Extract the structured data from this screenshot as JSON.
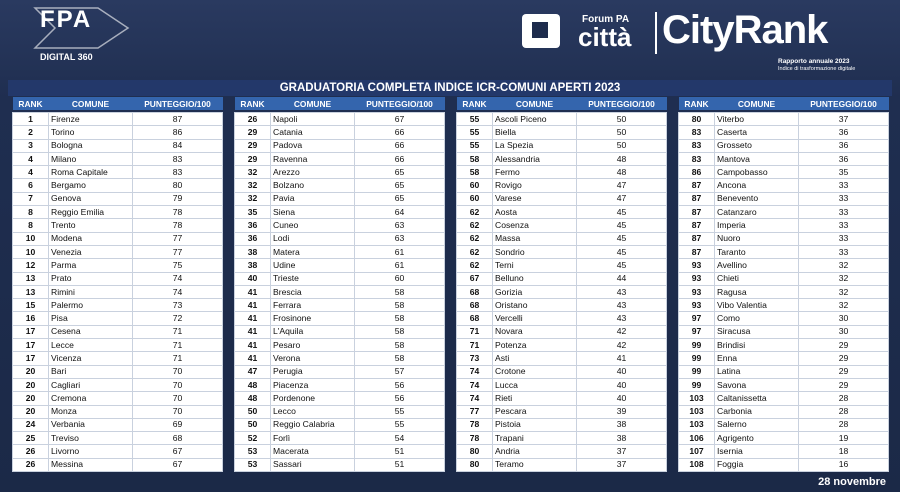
{
  "header": {
    "fpa": "FPA",
    "digital": "DIGITAL 360",
    "forum": "Forum PA",
    "citta": "città",
    "cityrank": "CityRank",
    "rapporto": "Rapporto annuale 2023",
    "indice": "Indice di trasformazione digitale"
  },
  "table": {
    "title": "GRADUATORIA COMPLETA INDICE ICR-COMUNI APERTI 2023",
    "columns": [
      "RANK",
      "COMUNE",
      "PUNTEGGIO/100"
    ],
    "groups": [
      [
        [
          1,
          "Firenze",
          87
        ],
        [
          2,
          "Torino",
          86
        ],
        [
          3,
          "Bologna",
          84
        ],
        [
          4,
          "Milano",
          83
        ],
        [
          4,
          "Roma Capitale",
          83
        ],
        [
          6,
          "Bergamo",
          80
        ],
        [
          7,
          "Genova",
          79
        ],
        [
          8,
          "Reggio Emilia",
          78
        ],
        [
          8,
          "Trento",
          78
        ],
        [
          10,
          "Modena",
          77
        ],
        [
          10,
          "Venezia",
          77
        ],
        [
          12,
          "Parma",
          75
        ],
        [
          13,
          "Prato",
          74
        ],
        [
          13,
          "Rimini",
          74
        ],
        [
          15,
          "Palermo",
          73
        ],
        [
          16,
          "Pisa",
          72
        ],
        [
          17,
          "Cesena",
          71
        ],
        [
          17,
          "Lecce",
          71
        ],
        [
          17,
          "Vicenza",
          71
        ],
        [
          20,
          "Bari",
          70
        ],
        [
          20,
          "Cagliari",
          70
        ],
        [
          20,
          "Cremona",
          70
        ],
        [
          20,
          "Monza",
          70
        ],
        [
          24,
          "Verbania",
          69
        ],
        [
          25,
          "Treviso",
          68
        ],
        [
          26,
          "Livorno",
          67
        ],
        [
          26,
          "Messina",
          67
        ]
      ],
      [
        [
          26,
          "Napoli",
          67
        ],
        [
          29,
          "Catania",
          66
        ],
        [
          29,
          "Padova",
          66
        ],
        [
          29,
          "Ravenna",
          66
        ],
        [
          32,
          "Arezzo",
          65
        ],
        [
          32,
          "Bolzano",
          65
        ],
        [
          32,
          "Pavia",
          65
        ],
        [
          35,
          "Siena",
          64
        ],
        [
          36,
          "Cuneo",
          63
        ],
        [
          36,
          "Lodi",
          63
        ],
        [
          38,
          "Matera",
          61
        ],
        [
          38,
          "Udine",
          61
        ],
        [
          40,
          "Trieste",
          60
        ],
        [
          41,
          "Brescia",
          58
        ],
        [
          41,
          "Ferrara",
          58
        ],
        [
          41,
          "Frosinone",
          58
        ],
        [
          41,
          "L'Aquila",
          58
        ],
        [
          41,
          "Pesaro",
          58
        ],
        [
          41,
          "Verona",
          58
        ],
        [
          47,
          "Perugia",
          57
        ],
        [
          48,
          "Piacenza",
          56
        ],
        [
          48,
          "Pordenone",
          56
        ],
        [
          50,
          "Lecco",
          55
        ],
        [
          50,
          "Reggio Calabria",
          55
        ],
        [
          52,
          "Forlì",
          54
        ],
        [
          53,
          "Macerata",
          51
        ],
        [
          53,
          "Sassari",
          51
        ]
      ],
      [
        [
          55,
          "Ascoli Piceno",
          50
        ],
        [
          55,
          "Biella",
          50
        ],
        [
          55,
          "La Spezia",
          50
        ],
        [
          58,
          "Alessandria",
          48
        ],
        [
          58,
          "Fermo",
          48
        ],
        [
          60,
          "Rovigo",
          47
        ],
        [
          60,
          "Varese",
          47
        ],
        [
          62,
          "Aosta",
          45
        ],
        [
          62,
          "Cosenza",
          45
        ],
        [
          62,
          "Massa",
          45
        ],
        [
          62,
          "Sondrio",
          45
        ],
        [
          62,
          "Terni",
          45
        ],
        [
          67,
          "Belluno",
          44
        ],
        [
          68,
          "Gorizia",
          43
        ],
        [
          68,
          "Oristano",
          43
        ],
        [
          68,
          "Vercelli",
          43
        ],
        [
          71,
          "Novara",
          42
        ],
        [
          71,
          "Potenza",
          42
        ],
        [
          73,
          "Asti",
          41
        ],
        [
          74,
          "Crotone",
          40
        ],
        [
          74,
          "Lucca",
          40
        ],
        [
          74,
          "Rieti",
          40
        ],
        [
          77,
          "Pescara",
          39
        ],
        [
          78,
          "Pistoia",
          38
        ],
        [
          78,
          "Trapani",
          38
        ],
        [
          80,
          "Andria",
          37
        ],
        [
          80,
          "Teramo",
          37
        ]
      ],
      [
        [
          80,
          "Viterbo",
          37
        ],
        [
          83,
          "Caserta",
          36
        ],
        [
          83,
          "Grosseto",
          36
        ],
        [
          83,
          "Mantova",
          36
        ],
        [
          86,
          "Campobasso",
          35
        ],
        [
          87,
          "Ancona",
          33
        ],
        [
          87,
          "Benevento",
          33
        ],
        [
          87,
          "Catanzaro",
          33
        ],
        [
          87,
          "Imperia",
          33
        ],
        [
          87,
          "Nuoro",
          33
        ],
        [
          87,
          "Taranto",
          33
        ],
        [
          93,
          "Avellino",
          32
        ],
        [
          93,
          "Chieti",
          32
        ],
        [
          93,
          "Ragusa",
          32
        ],
        [
          93,
          "Vibo Valentia",
          32
        ],
        [
          97,
          "Como",
          30
        ],
        [
          97,
          "Siracusa",
          30
        ],
        [
          99,
          "Brindisi",
          29
        ],
        [
          99,
          "Enna",
          29
        ],
        [
          99,
          "Latina",
          29
        ],
        [
          99,
          "Savona",
          29
        ],
        [
          103,
          "Caltanissetta",
          28
        ],
        [
          103,
          "Carbonia",
          28
        ],
        [
          103,
          "Salerno",
          28
        ],
        [
          106,
          "Agrigento",
          19
        ],
        [
          107,
          "Isernia",
          18
        ],
        [
          108,
          "Foggia",
          16
        ]
      ]
    ]
  },
  "footer": {
    "date": "28 novembre"
  }
}
